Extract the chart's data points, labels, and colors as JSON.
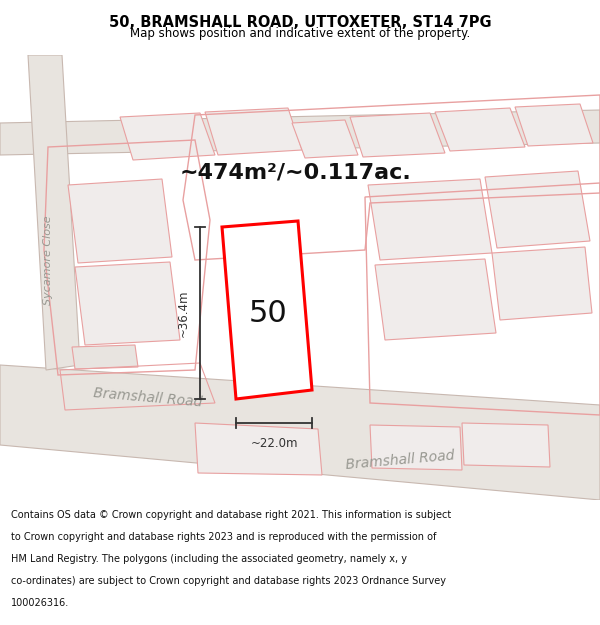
{
  "title_line1": "50, BRAMSHALL ROAD, UTTOXETER, ST14 7PG",
  "title_line2": "Map shows position and indicative extent of the property.",
  "area_text": "~474m²/~0.117ac.",
  "label_50": "50",
  "dim_vertical": "~36.4m",
  "dim_horizontal": "~22.0m",
  "road_label1": "Bramshall Road",
  "road_label2": "Bramshall Road",
  "street_label": "Sycamore Close",
  "footer_lines": [
    "Contains OS data © Crown copyright and database right 2021. This information is subject",
    "to Crown copyright and database rights 2023 and is reproduced with the permission of",
    "HM Land Registry. The polygons (including the associated geometry, namely x, y",
    "co-ordinates) are subject to Crown copyright and database rights 2023 Ordnance Survey",
    "100026316."
  ],
  "map_bg": "#f0eeea",
  "road_fill": "#e8e4df",
  "road_stroke": "#c8b8b0",
  "plot_color": "#ff0000",
  "neighbor_stroke": "#e8a0a0",
  "neighbor_fill": "#f0eceb",
  "dim_color": "#333333",
  "title_color": "#000000",
  "footer_color": "#111111",
  "white": "#ffffff"
}
